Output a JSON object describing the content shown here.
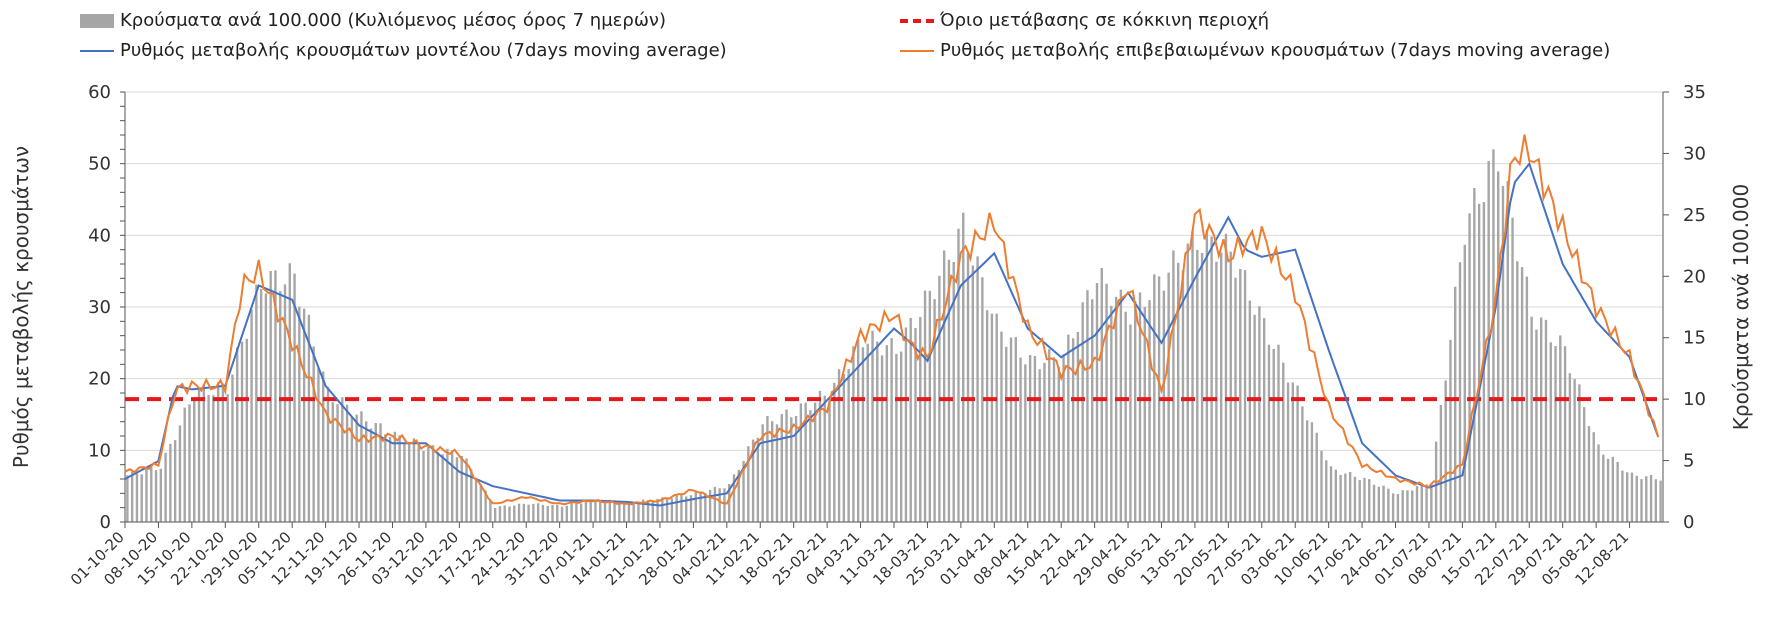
{
  "chart_data": {
    "type": "bar",
    "title": "",
    "legend_position": "top",
    "grid": true,
    "y_left": {
      "label": "Ρυθμός μεταβολής κρουσμάτων",
      "ticks": [
        0,
        10,
        20,
        30,
        40,
        50,
        60
      ],
      "lim": [
        0,
        60
      ]
    },
    "y_right": {
      "label": "Κρούσματα ανά 100.000",
      "ticks": [
        0,
        5,
        10,
        15,
        20,
        25,
        30,
        35
      ],
      "lim": [
        0,
        35
      ]
    },
    "x_tick_labels": [
      "01-10-20",
      "08-10-20",
      "15-10-20",
      "22-10-20",
      "'29-10-20",
      "05-11-20",
      "12-11-20",
      "19-11-20",
      "26-11-20",
      "03-12-20",
      "10-12-20",
      "17-12-20",
      "24-12-20",
      "31-12-20",
      "07-01-21",
      "14-01-21",
      "21-01-21",
      "28-01-21",
      "04-02-21",
      "11-02-21",
      "18-02-21",
      "25-02-21",
      "04-03-21",
      "11-03-21",
      "18-03-21",
      "25-03-21",
      "01-04-21",
      "08-04-21",
      "15-04-21",
      "22-04-21",
      "29-04-21",
      "06-05-21",
      "13-05-21",
      "20-05-21",
      "27-05-21",
      "03-06-21",
      "10-06-21",
      "17-06-21",
      "24-06-21",
      "01-07-21",
      "08-07-21",
      "15-07-21",
      "22-07-21",
      "29-07-21",
      "05-08-21",
      "12-08-21"
    ],
    "series": [
      {
        "name": "Κρούσματα ανά 100.000 (Κυλιόμενος μέσος όρος 7 ημερών)",
        "type": "bar",
        "axis": "right",
        "color": "#a6a6a6",
        "x_week": [
          0,
          1,
          2,
          3,
          4,
          5,
          6,
          7,
          8,
          9,
          10,
          11,
          12,
          13,
          14,
          15,
          16,
          17,
          18,
          19,
          20,
          21,
          22,
          23,
          24,
          25,
          26,
          27,
          28,
          29,
          30,
          31,
          32,
          33,
          34,
          35,
          36,
          37,
          38,
          39,
          40,
          41,
          42,
          43,
          44,
          45,
          46
        ],
        "values": [
          3.8,
          4.5,
          10.5,
          11.0,
          19.5,
          20.0,
          10.5,
          8.5,
          7.0,
          6.0,
          5.5,
          1.2,
          1.5,
          1.3,
          1.8,
          1.6,
          1.9,
          2.3,
          3.0,
          8.0,
          9.0,
          10.5,
          15.0,
          14.0,
          18.5,
          24.0,
          16.0,
          13.0,
          13.5,
          20.0,
          17.0,
          20.0,
          23.0,
          22.0,
          16.0,
          10.5,
          4.3,
          3.5,
          2.3,
          3.3,
          24.0,
          30.0,
          17.0,
          14.0,
          6.0,
          3.8,
          3.5
        ]
      },
      {
        "name": "Όριο μετάβασης σε κόκκινη περιοχή",
        "type": "hline",
        "axis": "right",
        "value": 10,
        "color": "#e31a1c"
      },
      {
        "name": "Ρυθμός μεταβολής κρουσμάτων μοντέλου (7days moving average)",
        "type": "line",
        "axis": "left",
        "color": "#4472c4",
        "x_week": [
          0,
          1,
          1.5,
          2,
          3,
          3.5,
          4,
          5,
          6,
          7,
          8,
          9,
          10,
          11,
          12,
          13,
          14,
          15,
          16,
          17,
          18,
          19,
          20,
          21,
          22,
          23,
          23.5,
          24,
          25,
          26,
          27,
          28,
          29,
          30,
          31,
          32,
          33,
          33.5,
          34,
          35,
          36,
          37,
          38,
          39,
          40,
          41,
          41.5,
          42,
          43,
          44,
          45,
          46,
          46.2
        ],
        "values": [
          6.0,
          8.5,
          19.0,
          18.5,
          19.0,
          26.0,
          33.0,
          31.0,
          19.0,
          13.5,
          11.0,
          11.0,
          7.0,
          5.0,
          4.0,
          3.0,
          3.0,
          2.8,
          2.3,
          3.2,
          4.0,
          11.0,
          12.0,
          17.0,
          22.0,
          27.0,
          25.0,
          22.5,
          33.0,
          37.5,
          27.0,
          23.0,
          26.0,
          32.0,
          25.0,
          34.0,
          42.5,
          38.0,
          37.0,
          38.0,
          24.0,
          11.0,
          6.5,
          4.8,
          6.5,
          30.0,
          47.0,
          50.0,
          36.0,
          28.0,
          23.0,
          10.0,
          7.0
        ]
      },
      {
        "name": "Ρυθμός μεταβολής επιβεβαιωμένων κρουσμάτων (7days moving average)",
        "type": "line",
        "axis": "left",
        "color": "#ed7d31",
        "x_week": [
          0,
          1,
          1.5,
          2,
          3,
          3.5,
          4,
          5,
          6,
          7,
          8,
          9,
          10,
          11,
          12,
          13,
          14,
          15,
          16,
          17,
          18,
          19,
          20,
          21,
          22,
          23,
          23.5,
          24,
          25,
          26,
          27,
          28,
          29,
          30,
          31,
          32,
          33,
          33.5,
          34,
          35,
          36,
          37,
          38,
          39,
          40,
          41,
          41.5,
          42,
          43,
          44,
          45,
          46,
          46.2
        ],
        "values": [
          7.0,
          8.0,
          18.5,
          19.0,
          19.0,
          33.0,
          35.0,
          25.0,
          15.0,
          11.5,
          12.0,
          10.5,
          9.5,
          2.5,
          3.5,
          2.5,
          3.0,
          2.5,
          3.0,
          4.5,
          2.5,
          12.0,
          13.0,
          16.0,
          26.0,
          29.0,
          24.5,
          23.0,
          37.0,
          42.0,
          27.0,
          21.0,
          22.0,
          33.0,
          18.0,
          43.0,
          37.0,
          39.0,
          40.0,
          32.0,
          16.0,
          8.0,
          6.0,
          5.0,
          8.0,
          31.0,
          51.0,
          52.0,
          41.0,
          30.0,
          23.0,
          10.0,
          7.0
        ]
      }
    ]
  },
  "legend": {
    "bars_label": "Κρούσματα ανά 100.000 (Κυλιόμενος μέσος όρος 7 ημερών)",
    "red_label": "Όριο μετάβασης σε κόκκινη περιοχή",
    "blue_label": "Ρυθμός μεταβολής κρουσμάτων μοντέλου (7days moving average)",
    "orange_label": "Ρυθμός μεταβολής επιβεβαιωμένων κρουσμάτων (7days moving average)"
  }
}
